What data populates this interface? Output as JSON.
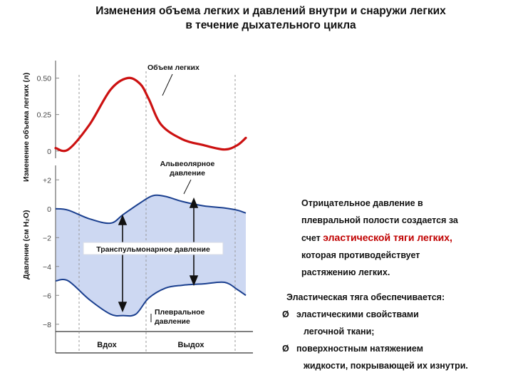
{
  "title_lines": [
    "Изменения объема легких и давлений внутри и снаружи легких",
    "в течение дыхательного цикла"
  ],
  "chart_data": [
    {
      "type": "line",
      "ylabel": "Изменение объема легких (л)",
      "yticks": [
        "0",
        "0.25",
        "0.50"
      ],
      "ylim": [
        -0.05,
        0.62
      ],
      "series": [
        {
          "name": "Объем легких",
          "color": "#cc1111",
          "x": [
            0,
            0.3,
            0.8,
            1.3,
            1.7,
            2.0,
            2.2,
            2.5,
            3.0,
            3.5,
            4.0,
            4.3,
            4.5
          ],
          "values": [
            0.02,
            0.01,
            0.18,
            0.42,
            0.5,
            0.46,
            0.36,
            0.18,
            0.08,
            0.04,
            0.01,
            0.04,
            0.09
          ]
        }
      ],
      "xlim": [
        0,
        4.5
      ]
    },
    {
      "type": "area",
      "ylabel": "Давление (см H₂O)",
      "yticks": [
        "+2",
        "0",
        "−2",
        "−4",
        "−6",
        "−8"
      ],
      "ylim": [
        -9,
        3
      ],
      "series": [
        {
          "name": "Альвеолярное давление",
          "color": "#1a3f8f",
          "x": [
            0,
            0.3,
            0.8,
            1.3,
            1.6,
            2.0,
            2.3,
            2.6,
            3.0,
            3.5,
            4.0,
            4.3,
            4.5
          ],
          "values": [
            0.0,
            -0.1,
            -0.7,
            -1.0,
            -0.4,
            0.4,
            0.9,
            0.85,
            0.5,
            0.2,
            0.05,
            -0.1,
            -0.3
          ]
        },
        {
          "name": "Плевральное давление",
          "color": "#1a3f8f",
          "x": [
            0,
            0.3,
            0.8,
            1.3,
            1.6,
            1.9,
            2.2,
            2.6,
            3.0,
            3.5,
            4.0,
            4.3,
            4.5
          ],
          "values": [
            -5.0,
            -5.0,
            -6.3,
            -7.3,
            -7.4,
            -7.3,
            -6.2,
            -5.5,
            -5.3,
            -5.2,
            -5.1,
            -5.6,
            -6.0
          ]
        }
      ],
      "xlim": [
        0,
        4.5
      ],
      "annotations": [
        "Транспульмонарное давление"
      ]
    }
  ],
  "labels": {
    "volume_curve": "Объем легких",
    "alveolar_l1": "Альвеолярное",
    "alveolar_l2": "давление",
    "transpulmonary": "Транспульмонарное давление",
    "pleural_l1": "Плевральное",
    "pleural_l2": "давление",
    "inhale": "Вдох",
    "exhale": "Выдох"
  },
  "note": {
    "lines": [
      "Отрицательное давление в",
      "плевральной полости создается за"
    ],
    "line3_pre": "счет ",
    "line3_highlight": "эластической тяги легких,",
    "lines_after": [
      "которая противодействует",
      "растяжению легких."
    ],
    "highlight_color": "#c00000"
  },
  "bullets": {
    "heading": "Эластическая тяга обеспечивается:",
    "marker": "Ø",
    "items": [
      {
        "l1": "эластическими свойствами",
        "l2": "легочной ткани;"
      },
      {
        "l1": "поверхностным натяжением",
        "l2": "жидкости, покрывающей их изнутри."
      }
    ]
  }
}
